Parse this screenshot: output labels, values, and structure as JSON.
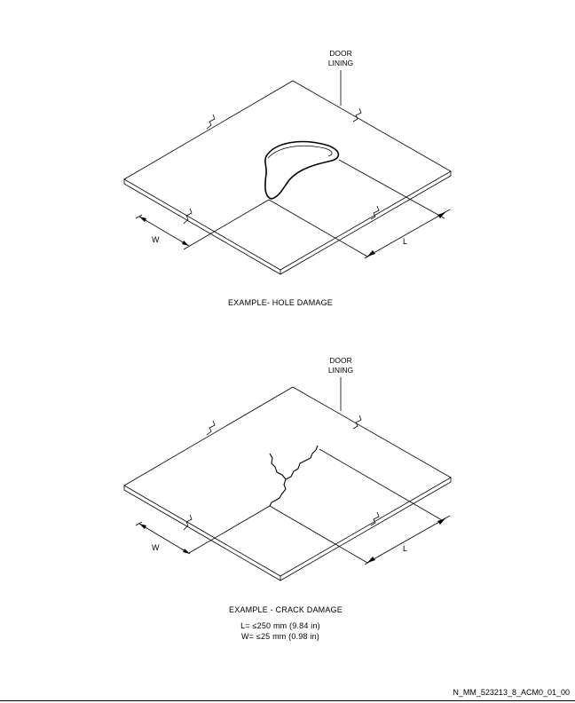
{
  "figure_hole": {
    "callout": [
      "DOOR",
      "LINING"
    ],
    "dim_w": "W",
    "dim_l": "L",
    "caption": "EXAMPLE- HOLE DAMAGE"
  },
  "figure_crack": {
    "callout": [
      "DOOR",
      "LINING"
    ],
    "dim_w": "W",
    "dim_l": "L",
    "caption": "EXAMPLE - CRACK DAMAGE",
    "limits": [
      "L= ≤250 mm  (9.84 in)",
      "W= ≤25 mm  (0.98 in)"
    ]
  },
  "footer": {
    "code": "N_MM_523213_8_ACM0_01_00"
  }
}
